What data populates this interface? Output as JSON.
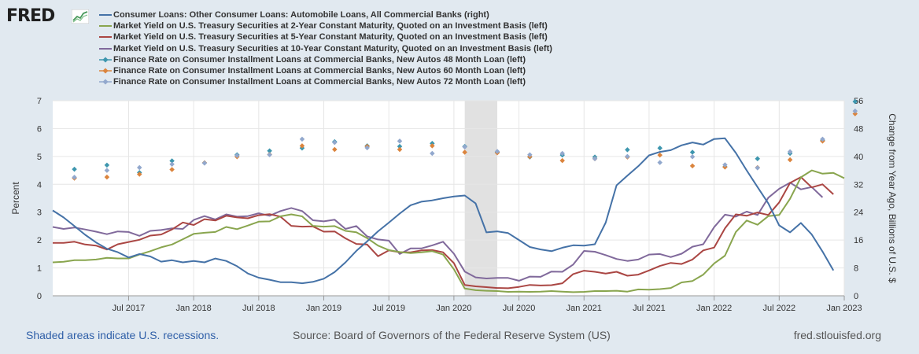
{
  "branding": {
    "logo_text": "FRED"
  },
  "footer": {
    "recession_note": "Shaded areas indicate U.S. recessions.",
    "source": "Source: Board of Governors of the Federal Reserve System (US)",
    "site": "fred.stlouisfed.org"
  },
  "colors": {
    "plot_bg": "#ffffff",
    "page_bg": "#e1e9f0",
    "recession": "#e1e1e1",
    "grid": "#e6e6e6"
  },
  "chart_data": {
    "type": "line",
    "recession_shading": {
      "start": "2020-02",
      "end": "2020-04"
    },
    "xaxis": {
      "min": "2016-12",
      "max": "2023-01",
      "ticks": [
        "Jul 2017",
        "Jan 2018",
        "Jul 2018",
        "Jan 2019",
        "Jul 2019",
        "Jan 2020",
        "Jul 2020",
        "Jan 2021",
        "Jul 2021",
        "Jan 2022",
        "Jul 2022",
        "Jan 2023"
      ]
    },
    "yaxis_left": {
      "label": "Percent",
      "range": [
        0,
        7
      ],
      "ticks": [
        "0",
        "1",
        "2",
        "3",
        "4",
        "5",
        "6",
        "7"
      ]
    },
    "yaxis_right": {
      "label": "Change from Year Ago, Billions of U.S. $",
      "range": [
        0,
        56
      ],
      "ticks": [
        "0",
        "8",
        "16",
        "24",
        "32",
        "40",
        "48",
        "56"
      ]
    },
    "series": [
      {
        "name": "Consumer Loans: Other Consumer Loans: Automobile Loans, All Commercial Banks (right)",
        "axis": "right",
        "style": "line",
        "color": "#4572a7",
        "values": [
          24.5,
          22.5,
          20.0,
          17.5,
          15.3,
          13.5,
          12.5,
          11.0,
          12.0,
          11.3,
          9.8,
          10.2,
          9.6,
          10.0,
          9.6,
          10.7,
          10.0,
          8.5,
          6.4,
          5.2,
          4.6,
          3.9,
          3.9,
          3.6,
          4.0,
          4.9,
          6.8,
          9.6,
          12.9,
          15.6,
          18.5,
          21.0,
          23.6,
          26.0,
          27.0,
          27.4,
          28.0,
          28.5,
          28.8,
          26.5,
          18.2,
          18.5,
          18.0,
          16.0,
          14.0,
          13.3,
          12.8,
          13.8,
          14.5,
          14.4,
          14.8,
          21.0,
          31.7,
          34.5,
          37.2,
          40.3,
          41.3,
          41.8,
          43.2,
          44.0,
          43.4,
          45.0,
          45.2,
          41.0,
          36.0,
          31.2,
          26.5,
          20.2,
          18.2,
          20.9,
          17.6,
          12.7,
          7.3
        ]
      },
      {
        "name": "Market Yield on U.S. Treasury Securities at 2-Year Constant Maturity, Quoted on an Investment Basis (left)",
        "axis": "left",
        "style": "line",
        "color": "#89a54e",
        "values": [
          1.2,
          1.22,
          1.28,
          1.28,
          1.3,
          1.36,
          1.34,
          1.34,
          1.48,
          1.6,
          1.74,
          1.84,
          2.03,
          2.22,
          2.26,
          2.29,
          2.47,
          2.39,
          2.52,
          2.66,
          2.67,
          2.85,
          2.92,
          2.85,
          2.51,
          2.48,
          2.5,
          2.33,
          2.28,
          2.07,
          1.8,
          1.64,
          1.57,
          1.53,
          1.56,
          1.6,
          1.48,
          0.95,
          0.26,
          0.2,
          0.18,
          0.17,
          0.14,
          0.15,
          0.14,
          0.15,
          0.17,
          0.15,
          0.13,
          0.14,
          0.17,
          0.17,
          0.18,
          0.15,
          0.23,
          0.22,
          0.24,
          0.28,
          0.48,
          0.53,
          0.76,
          1.16,
          1.44,
          2.29,
          2.7,
          2.55,
          2.86,
          2.9,
          3.48,
          4.25,
          4.5,
          4.38,
          4.41,
          4.22
        ]
      },
      {
        "name": "Market Yield on U.S. Treasury Securities at 5-Year Constant Maturity, Quoted on an Investment Basis (left)",
        "axis": "left",
        "style": "line",
        "color": "#aa4643",
        "values": [
          1.9,
          1.9,
          1.94,
          1.84,
          1.8,
          1.66,
          1.85,
          1.93,
          2.01,
          2.16,
          2.2,
          2.38,
          2.63,
          2.54,
          2.75,
          2.7,
          2.87,
          2.81,
          2.78,
          2.89,
          2.93,
          2.84,
          2.51,
          2.48,
          2.49,
          2.3,
          2.31,
          2.06,
          1.86,
          1.84,
          1.42,
          1.63,
          1.56,
          1.56,
          1.63,
          1.64,
          1.56,
          1.17,
          0.39,
          0.34,
          0.31,
          0.28,
          0.27,
          0.32,
          0.39,
          0.37,
          0.38,
          0.45,
          0.78,
          0.9,
          0.86,
          0.8,
          0.86,
          0.72,
          0.76,
          0.91,
          1.07,
          1.18,
          1.14,
          1.3,
          1.63,
          1.73,
          2.42,
          2.92,
          2.87,
          2.99,
          2.9,
          3.35,
          4.05,
          4.26,
          3.89,
          4.0,
          3.64
        ]
      },
      {
        "name": "Market Yield on U.S. Treasury Securities at 10-Year Constant Maturity, Quoted on an Investment Basis (left)",
        "axis": "left",
        "style": "line",
        "color": "#80699b",
        "values": [
          2.47,
          2.4,
          2.45,
          2.38,
          2.3,
          2.21,
          2.31,
          2.29,
          2.15,
          2.33,
          2.36,
          2.42,
          2.4,
          2.72,
          2.86,
          2.74,
          2.92,
          2.84,
          2.86,
          2.96,
          2.87,
          3.04,
          3.15,
          3.04,
          2.71,
          2.67,
          2.73,
          2.4,
          2.5,
          2.13,
          2.02,
          1.98,
          1.5,
          1.7,
          1.7,
          1.81,
          1.94,
          1.51,
          0.87,
          0.66,
          0.62,
          0.64,
          0.64,
          0.54,
          0.69,
          0.68,
          0.87,
          0.86,
          1.12,
          1.61,
          1.58,
          1.46,
          1.32,
          1.25,
          1.3,
          1.48,
          1.5,
          1.39,
          1.51,
          1.76,
          1.85,
          2.46,
          2.91,
          2.84,
          3.02,
          2.9,
          3.52,
          3.84,
          4.06,
          3.82,
          3.9,
          3.53
        ]
      },
      {
        "name": "Finance Rate on Consumer Installment Loans at Commercial Banks, New Autos 48 Month Loan (left)",
        "axis": "left",
        "style": "markers",
        "color": "#3d96ae",
        "points": [
          [
            2,
            4.54
          ],
          [
            5,
            4.69
          ],
          [
            8,
            4.42
          ],
          [
            11,
            4.84
          ],
          [
            14,
            4.77
          ],
          [
            17,
            5.06
          ],
          [
            20,
            5.2
          ],
          [
            23,
            5.3
          ],
          [
            26,
            5.53
          ],
          [
            29,
            5.38
          ],
          [
            32,
            5.36
          ],
          [
            35,
            5.47
          ],
          [
            38,
            5.36
          ],
          [
            41,
            5.15
          ],
          [
            44,
            4.98
          ],
          [
            47,
            5.05
          ],
          [
            50,
            4.98
          ],
          [
            53,
            5.24
          ],
          [
            56,
            5.3
          ],
          [
            59,
            5.15
          ],
          [
            62,
            4.63
          ],
          [
            65,
            4.92
          ],
          [
            68,
            5.11
          ],
          [
            71,
            5.58
          ],
          [
            74,
            6.97
          ]
        ]
      },
      {
        "name": "Finance Rate on Consumer Installment Loans at Commercial Banks, New Autos 60 Month Loan (left)",
        "axis": "left",
        "style": "markers",
        "color": "#db843d",
        "points": [
          [
            2,
            4.22
          ],
          [
            5,
            4.26
          ],
          [
            8,
            4.36
          ],
          [
            11,
            4.53
          ],
          [
            14,
            4.77
          ],
          [
            17,
            4.99
          ],
          [
            20,
            5.07
          ],
          [
            23,
            5.38
          ],
          [
            26,
            5.25
          ],
          [
            29,
            5.36
          ],
          [
            32,
            5.25
          ],
          [
            35,
            5.38
          ],
          [
            38,
            5.15
          ],
          [
            41,
            5.13
          ],
          [
            44,
            4.99
          ],
          [
            47,
            4.85
          ],
          [
            50,
            4.92
          ],
          [
            53,
            4.98
          ],
          [
            56,
            5.05
          ],
          [
            59,
            4.66
          ],
          [
            62,
            4.62
          ],
          [
            65,
            4.6
          ],
          [
            68,
            4.88
          ],
          [
            71,
            5.55
          ],
          [
            74,
            6.53
          ]
        ]
      },
      {
        "name": "Finance Rate on Consumer Installment Loans at Commercial Banks, New Autos 72 Month Loan (left)",
        "axis": "left",
        "style": "markers",
        "color": "#92a8cd",
        "points": [
          [
            2,
            4.25
          ],
          [
            5,
            4.5
          ],
          [
            8,
            4.6
          ],
          [
            11,
            4.72
          ],
          [
            14,
            4.76
          ],
          [
            17,
            5.03
          ],
          [
            20,
            5.06
          ],
          [
            23,
            5.62
          ],
          [
            26,
            5.5
          ],
          [
            29,
            5.31
          ],
          [
            32,
            5.55
          ],
          [
            35,
            5.11
          ],
          [
            38,
            5.34
          ],
          [
            41,
            5.18
          ],
          [
            44,
            5.06
          ],
          [
            47,
            5.11
          ],
          [
            50,
            4.92
          ],
          [
            53,
            5.0
          ],
          [
            56,
            4.78
          ],
          [
            59,
            4.99
          ],
          [
            62,
            4.7
          ],
          [
            65,
            4.59
          ],
          [
            68,
            5.17
          ],
          [
            71,
            5.62
          ],
          [
            74,
            6.63
          ]
        ]
      }
    ]
  }
}
